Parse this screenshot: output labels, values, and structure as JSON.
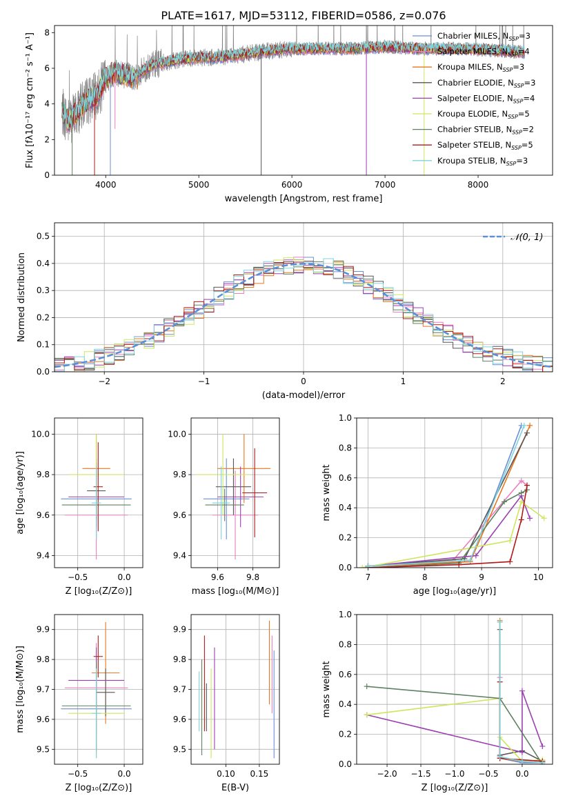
{
  "figure": {
    "title": "PLATE=1617, MJD=53112, FIBERID=0586, z=0.076"
  },
  "colors": {
    "Chabrier MILES": "#6a8fd6",
    "Salpeter MILES": "#e87fc0",
    "Kroupa MILES": "#e8761f",
    "Chabrier ELODIE": "#555555",
    "Salpeter ELODIE": "#9b3fb0",
    "Kroupa ELODIE": "#cfe55a",
    "Chabrier STELIB": "#5d8060",
    "Salpeter STELIB": "#b01818",
    "Kroupa STELIB": "#7fd3dd",
    "data": "#808080",
    "gauss": "#5b8fd8"
  },
  "chart_data": [
    {
      "id": "spectrum",
      "type": "line",
      "title": "PLATE=1617, MJD=53112, FIBERID=0586, z=0.076",
      "xlabel": "wavelength [Angstrom, rest frame]",
      "ylabel": "Flux [fλ10⁻¹⁷ erg cm⁻² s⁻¹ A⁻¹]",
      "xlim": [
        3450,
        8800
      ],
      "ylim": [
        0,
        8.4
      ],
      "xticks": [
        4000,
        5000,
        6000,
        7000,
        8000
      ],
      "yticks": [
        0,
        2,
        4,
        6,
        8
      ],
      "legend_position": "right",
      "legend": [
        {
          "label": "Chabrier MILES, N",
          "sub": "SSP",
          "n": "=3"
        },
        {
          "label": "Salpeter MILES, N",
          "sub": "SSP",
          "n": "=4"
        },
        {
          "label": "Kroupa MILES, N",
          "sub": "SSP",
          "n": "=3"
        },
        {
          "label": "Chabrier ELODIE, N",
          "sub": "SSP",
          "n": "=3"
        },
        {
          "label": "Salpeter ELODIE, N",
          "sub": "SSP",
          "n": "=4"
        },
        {
          "label": "Kroupa ELODIE, N",
          "sub": "SSP",
          "n": "=5"
        },
        {
          "label": "Chabrier STELIB, N",
          "sub": "SSP",
          "n": "=2"
        },
        {
          "label": "Salpeter STELIB, N",
          "sub": "SSP",
          "n": "=5"
        },
        {
          "label": "Kroupa STELIB, N",
          "sub": "SSP",
          "n": "=3"
        }
      ],
      "continuum": [
        [
          3500,
          3.8
        ],
        [
          3600,
          3.0
        ],
        [
          3700,
          3.6
        ],
        [
          3800,
          4.2
        ],
        [
          3900,
          4.4
        ],
        [
          3950,
          4.9
        ],
        [
          4000,
          5.4
        ],
        [
          4100,
          5.8
        ],
        [
          4300,
          5.5
        ],
        [
          4500,
          6.2
        ],
        [
          4800,
          6.5
        ],
        [
          5000,
          6.6
        ],
        [
          5200,
          6.6
        ],
        [
          5500,
          6.8
        ],
        [
          5800,
          7.0
        ],
        [
          6000,
          7.1
        ],
        [
          6300,
          7.1
        ],
        [
          6600,
          7.1
        ],
        [
          7000,
          7.2
        ],
        [
          7400,
          7.1
        ],
        [
          7800,
          7.1
        ],
        [
          8200,
          7.0
        ],
        [
          8500,
          6.9
        ]
      ],
      "spikes": [
        [
          4050,
          0
        ],
        [
          4100,
          2.6
        ],
        [
          4340,
          4.8
        ],
        [
          5670,
          0
        ],
        [
          6800,
          0
        ],
        [
          7420,
          0
        ],
        [
          3640,
          0
        ],
        [
          3880,
          0
        ]
      ]
    },
    {
      "id": "residuals",
      "type": "histogram",
      "xlabel": "(data-model)/error",
      "ylabel": "Normed distribution",
      "xlim": [
        -2.5,
        2.5
      ],
      "ylim": [
        0,
        0.55
      ],
      "xticks": [
        -2,
        -1,
        0,
        1,
        2
      ],
      "yticks": [
        0.0,
        0.1,
        0.2,
        0.3,
        0.4,
        0.5
      ],
      "legend": [
        {
          "label": "𝒩(0, 1)",
          "style": "dashed"
        }
      ],
      "bin_width": 0.1,
      "gauss": {
        "mu": 0,
        "sigma": 1
      }
    },
    {
      "id": "age_vs_Z",
      "type": "errorbar",
      "xlabel": "Z [log₁₀(Z/Z⊙)]",
      "ylabel": "age  [log₁₀(age/yr)]",
      "xlim": [
        -0.75,
        0.2
      ],
      "ylim": [
        9.34,
        10.08
      ],
      "xticks": [
        -0.5,
        0.0
      ],
      "yticks": [
        9.4,
        9.6,
        9.8,
        10.0
      ],
      "points": [
        {
          "model": "Chabrier MILES",
          "x": -0.3,
          "xerr": 0.38,
          "y": 9.68,
          "yerr": 0.2
        },
        {
          "model": "Salpeter MILES",
          "x": -0.3,
          "xerr": 0.34,
          "y": 9.6,
          "yerr": 0.22
        },
        {
          "model": "Kroupa MILES",
          "x": -0.3,
          "xerr": 0.15,
          "y": 9.83,
          "yerr": 0.17
        },
        {
          "model": "Chabrier ELODIE",
          "x": -0.3,
          "xerr": 0.1,
          "y": 9.72,
          "yerr": 0.14
        },
        {
          "model": "Salpeter ELODIE",
          "x": -0.3,
          "xerr": 0.3,
          "y": 9.69,
          "yerr": 0.15
        },
        {
          "model": "Kroupa ELODIE",
          "x": -0.3,
          "xerr": 0.3,
          "y": 9.8,
          "yerr": 0.2
        },
        {
          "model": "Chabrier STELIB",
          "x": -0.3,
          "xerr": 0.37,
          "y": 9.65,
          "yerr": 0.08
        },
        {
          "model": "Salpeter STELIB",
          "x": -0.28,
          "xerr": 0.05,
          "y": 9.74,
          "yerr": 0.22
        },
        {
          "model": "Kroupa STELIB",
          "x": -0.3,
          "xerr": 0.05,
          "y": 9.66,
          "yerr": 0.18
        }
      ]
    },
    {
      "id": "age_vs_mass",
      "type": "errorbar",
      "xlabel": "mass [log₁₀(M/M⊙)]",
      "ylabel": "",
      "xlim": [
        9.45,
        9.95
      ],
      "ylim": [
        9.34,
        10.08
      ],
      "xticks": [
        9.6,
        9.8
      ],
      "yticks": [
        9.4,
        9.6,
        9.8,
        10.0
      ],
      "points": [
        {
          "model": "Chabrier MILES",
          "x": 9.65,
          "xerr": 0.13,
          "y": 9.68,
          "yerr": 0.2
        },
        {
          "model": "Salpeter MILES",
          "x": 9.7,
          "xerr": 0.13,
          "y": 9.6,
          "yerr": 0.22
        },
        {
          "model": "Kroupa MILES",
          "x": 9.75,
          "xerr": 0.15,
          "y": 9.83,
          "yerr": 0.17
        },
        {
          "model": "Chabrier ELODIE",
          "x": 9.69,
          "xerr": 0.1,
          "y": 9.74,
          "yerr": 0.14
        },
        {
          "model": "Salpeter ELODIE",
          "x": 9.73,
          "xerr": 0.13,
          "y": 9.69,
          "yerr": 0.15
        },
        {
          "model": "Kroupa ELODIE",
          "x": 9.63,
          "xerr": 0.15,
          "y": 9.8,
          "yerr": 0.2
        },
        {
          "model": "Chabrier STELIB",
          "x": 9.64,
          "xerr": 0.11,
          "y": 9.65,
          "yerr": 0.08
        },
        {
          "model": "Salpeter STELIB",
          "x": 9.81,
          "xerr": 0.07,
          "y": 9.71,
          "yerr": 0.22
        },
        {
          "model": "Kroupa STELIB",
          "x": 9.62,
          "xerr": 0.05,
          "y": 9.66,
          "yerr": 0.18
        }
      ]
    },
    {
      "id": "weight_vs_age",
      "type": "line",
      "xlabel": "age  [log₁₀(age/yr)]",
      "ylabel": "mass weight",
      "xlim": [
        6.8,
        10.25
      ],
      "ylim": [
        0,
        1.0
      ],
      "xticks": [
        7,
        8,
        9,
        10
      ],
      "yticks": [
        0.0,
        0.2,
        0.4,
        0.6,
        0.8,
        1.0
      ],
      "series": [
        {
          "model": "Chabrier MILES",
          "x": [
            7.0,
            8.8,
            9.7
          ],
          "y": [
            0.01,
            0.04,
            0.95
          ]
        },
        {
          "model": "Salpeter MILES",
          "x": [
            7.0,
            8.5,
            9.7,
            9.8
          ],
          "y": [
            0.01,
            0.05,
            0.58,
            0.55
          ]
        },
        {
          "model": "Kroupa MILES",
          "x": [
            7.0,
            8.8,
            9.85
          ],
          "y": [
            0.01,
            0.04,
            0.95
          ]
        },
        {
          "model": "Chabrier ELODIE",
          "x": [
            7.0,
            8.7,
            9.8
          ],
          "y": [
            0.01,
            0.06,
            0.9
          ]
        },
        {
          "model": "Salpeter ELODIE",
          "x": [
            7.0,
            8.9,
            9.7,
            9.85
          ],
          "y": [
            0.01,
            0.08,
            0.48,
            0.33
          ]
        },
        {
          "model": "Kroupa ELODIE",
          "x": [
            6.9,
            9.5,
            9.7,
            10.1
          ],
          "y": [
            0.0,
            0.18,
            0.44,
            0.33
          ]
        },
        {
          "model": "Chabrier STELIB",
          "x": [
            7.0,
            8.6,
            9.4,
            9.7,
            9.8
          ],
          "y": [
            0.0,
            0.03,
            0.44,
            0.5,
            0.52
          ]
        },
        {
          "model": "Salpeter STELIB",
          "x": [
            7.0,
            8.6,
            9.5,
            9.7,
            9.8
          ],
          "y": [
            0.0,
            0.02,
            0.04,
            0.32,
            0.55
          ]
        },
        {
          "model": "Kroupa STELIB",
          "x": [
            7.0,
            8.8,
            9.75
          ],
          "y": [
            0.01,
            0.05,
            0.95
          ]
        }
      ]
    },
    {
      "id": "mass_vs_Z",
      "type": "errorbar",
      "xlabel": "Z [log₁₀(Z/Z⊙)]",
      "ylabel": "mass [log₁₀(M/M⊙)]",
      "xlim": [
        -0.75,
        0.2
      ],
      "ylim": [
        9.45,
        9.95
      ],
      "xticks": [
        -0.5,
        0.0
      ],
      "yticks": [
        9.5,
        9.6,
        9.7,
        9.8,
        9.9
      ],
      "points": [
        {
          "model": "Chabrier MILES",
          "x": -0.3,
          "xerr": 0.38,
          "y": 9.635,
          "yerr": 0.15
        },
        {
          "model": "Salpeter MILES",
          "x": -0.3,
          "xerr": 0.34,
          "y": 9.705,
          "yerr": 0.15
        },
        {
          "model": "Kroupa MILES",
          "x": -0.2,
          "xerr": 0.15,
          "y": 9.755,
          "yerr": 0.17
        },
        {
          "model": "Chabrier ELODIE",
          "x": -0.2,
          "xerr": 0.1,
          "y": 9.69,
          "yerr": 0.08
        },
        {
          "model": "Salpeter ELODIE",
          "x": -0.3,
          "xerr": 0.3,
          "y": 9.73,
          "yerr": 0.11
        },
        {
          "model": "Kroupa ELODIE",
          "x": -0.3,
          "xerr": 0.3,
          "y": 9.62,
          "yerr": 0.15
        },
        {
          "model": "Chabrier STELIB",
          "x": -0.3,
          "xerr": 0.37,
          "y": 9.645,
          "yerr": 0.15
        },
        {
          "model": "Salpeter STELIB",
          "x": -0.28,
          "xerr": 0.05,
          "y": 9.81,
          "yerr": 0.07
        },
        {
          "model": "Kroupa STELIB",
          "x": -0.3,
          "xerr": 0.05,
          "y": 9.62,
          "yerr": 0.15
        }
      ]
    },
    {
      "id": "mass_vs_ebv",
      "type": "errorbar",
      "xlabel": "E(B-V)",
      "ylabel": "",
      "xlim": [
        0.048,
        0.18
      ],
      "ylim": [
        9.45,
        9.95
      ],
      "xticks": [
        0.1,
        0.15
      ],
      "yticks": [
        9.5,
        9.6,
        9.7,
        9.8,
        9.9
      ],
      "points": [
        {
          "model": "Chabrier MILES",
          "x": 0.172,
          "xerr": 0,
          "y": 9.65,
          "yerr": 0.18
        },
        {
          "model": "Salpeter MILES",
          "x": 0.169,
          "xerr": 0,
          "y": 9.75,
          "yerr": 0.13
        },
        {
          "model": "Kroupa MILES",
          "x": 0.165,
          "xerr": 0,
          "y": 9.79,
          "yerr": 0.14
        },
        {
          "model": "Chabrier ELODIE",
          "x": 0.071,
          "xerr": 0,
          "y": 9.64,
          "yerr": 0.08
        },
        {
          "model": "Salpeter ELODIE",
          "x": 0.083,
          "xerr": 0,
          "y": 9.67,
          "yerr": 0.17
        },
        {
          "model": "Kroupa ELODIE",
          "x": 0.078,
          "xerr": 0,
          "y": 9.62,
          "yerr": 0.15
        },
        {
          "model": "Chabrier STELIB",
          "x": 0.064,
          "xerr": 0,
          "y": 9.64,
          "yerr": 0.16
        },
        {
          "model": "Salpeter STELIB",
          "x": 0.068,
          "xerr": 0,
          "y": 9.72,
          "yerr": 0.16
        },
        {
          "model": "Kroupa STELIB",
          "x": 0.06,
          "xerr": 0,
          "y": 9.66,
          "yerr": 0.1
        }
      ]
    },
    {
      "id": "weight_vs_Z",
      "type": "line",
      "xlabel": "Z [log₁₀(Z/Z⊙)]",
      "ylabel": "mass weight",
      "xlim": [
        -2.45,
        0.45
      ],
      "ylim": [
        0,
        1.0
      ],
      "xticks": [
        -2.0,
        -1.5,
        -1.0,
        -0.5,
        0.0
      ],
      "yticks": [
        0.0,
        0.2,
        0.4,
        0.6,
        0.8,
        1.0
      ],
      "series": [
        {
          "model": "Chabrier MILES",
          "x": [
            -0.33,
            -0.33,
            0.0,
            0.3
          ],
          "y": [
            0.95,
            0.04,
            0.01,
            0.01
          ]
        },
        {
          "model": "Salpeter MILES",
          "x": [
            -0.33,
            -0.33,
            0.0,
            0.3
          ],
          "y": [
            0.58,
            0.05,
            0.02,
            0.01
          ]
        },
        {
          "model": "Kroupa MILES",
          "x": [
            -0.33,
            -0.33,
            0.0,
            0.3
          ],
          "y": [
            0.96,
            0.04,
            0.02,
            0.01
          ]
        },
        {
          "model": "Chabrier ELODIE",
          "x": [
            -0.33,
            -0.33,
            0.0,
            0.3
          ],
          "y": [
            0.9,
            0.06,
            0.09,
            0.02
          ]
        },
        {
          "model": "Salpeter ELODIE",
          "x": [
            -2.3,
            0.0,
            0.0,
            0.3
          ],
          "y": [
            0.33,
            0.08,
            0.49,
            0.12
          ]
        },
        {
          "model": "Kroupa ELODIE",
          "x": [
            -2.3,
            -0.33,
            -0.33,
            0.0,
            0.3
          ],
          "y": [
            0.33,
            0.44,
            0.18,
            0.02,
            0.03
          ]
        },
        {
          "model": "Chabrier STELIB",
          "x": [
            -2.3,
            -0.33,
            0.3
          ],
          "y": [
            0.52,
            0.44,
            0.0
          ]
        },
        {
          "model": "Salpeter STELIB",
          "x": [
            -0.33,
            -0.33,
            0.3
          ],
          "y": [
            0.55,
            0.04,
            0.02
          ]
        },
        {
          "model": "Kroupa STELIB",
          "x": [
            -0.33,
            -0.33,
            0.0,
            0.3
          ],
          "y": [
            0.95,
            0.05,
            0.02,
            0.01
          ]
        }
      ]
    }
  ]
}
